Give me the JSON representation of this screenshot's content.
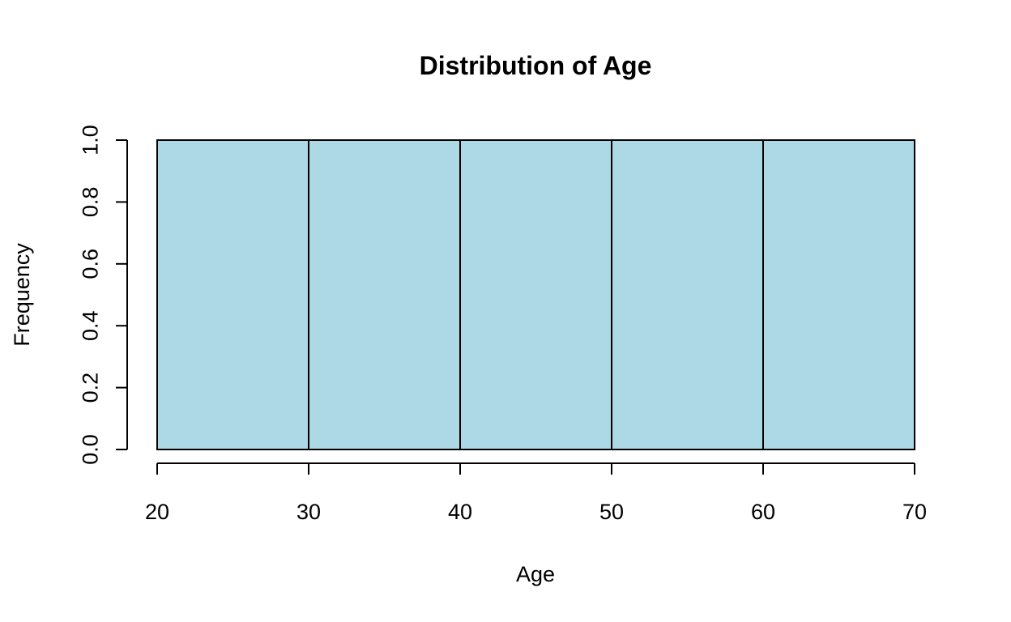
{
  "chart_data": {
    "type": "bar",
    "title": "Distribution of Age",
    "xlabel": "Age",
    "ylabel": "Frequency",
    "bins": [
      {
        "start": 20,
        "end": 30,
        "value": 1
      },
      {
        "start": 30,
        "end": 40,
        "value": 1
      },
      {
        "start": 40,
        "end": 50,
        "value": 1
      },
      {
        "start": 50,
        "end": 60,
        "value": 1
      },
      {
        "start": 60,
        "end": 70,
        "value": 1
      }
    ],
    "xlim": [
      20,
      70
    ],
    "ylim": [
      0,
      1
    ],
    "xticks": [
      "20",
      "30",
      "40",
      "50",
      "60",
      "70"
    ],
    "yticks": [
      "0.0",
      "0.2",
      "0.4",
      "0.6",
      "0.8",
      "1.0"
    ],
    "bar_color": "#add8e6",
    "grid": false
  }
}
